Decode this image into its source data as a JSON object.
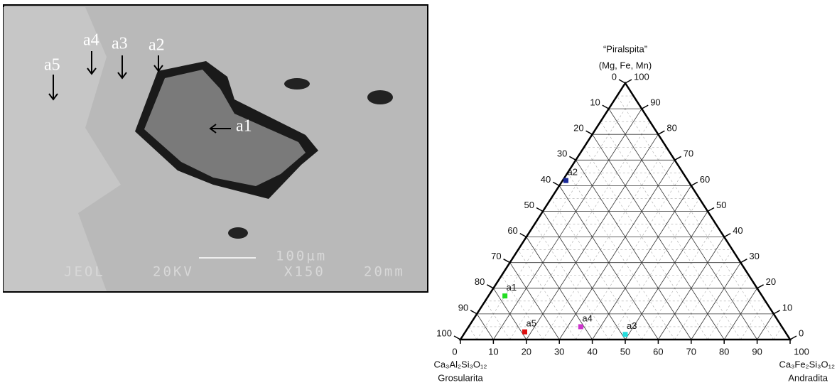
{
  "image": {
    "labels": [
      "a1",
      "a2",
      "a3",
      "a4",
      "a5"
    ],
    "scale": "100µm",
    "footer": [
      "JEOL",
      "20KV",
      "X150",
      "20mm"
    ]
  },
  "chart_data": {
    "type": "ternary",
    "title": [
      "“Piralspita”",
      "(Mg, Fe, Mn)"
    ],
    "bottom_left": [
      "Ca₃Al₂Si₃O₁₂",
      "Grosularita"
    ],
    "bottom_right": [
      "Ca₃Fe₂Si₃O₁₂",
      "Andradita"
    ],
    "labels": [
      "a1",
      "a2",
      "a3",
      "a4",
      "a5"
    ],
    "colors": [
      "#22dd22",
      "#1a2a9a",
      "#22dddd",
      "#cc33cc",
      "#dd1111"
    ],
    "piralspita": [
      17,
      62,
      2,
      5,
      3
    ],
    "andradita": [
      5,
      1,
      49,
      34,
      18
    ],
    "grosularita": [
      78,
      37,
      49,
      61,
      79
    ],
    "andradita_ticks": [
      0,
      10,
      20,
      30,
      40,
      50,
      60,
      70,
      80,
      90,
      100
    ],
    "grosularita_ticks": [
      0,
      10,
      20,
      30,
      40,
      50,
      60,
      70,
      80,
      90,
      100
    ],
    "piralspita_ticks": [
      0,
      10,
      20,
      30,
      40,
      50,
      60,
      70,
      80,
      90,
      100
    ],
    "grid": true,
    "minor_grid": true
  }
}
